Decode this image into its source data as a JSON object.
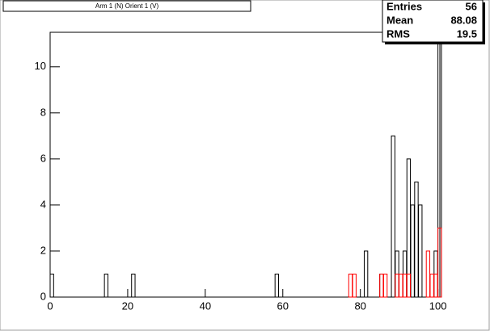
{
  "chart_data": {
    "type": "bar",
    "title": "Arm 1 (N) Orient 1 (V)",
    "stats": [
      {
        "label": "Entries",
        "value": 56
      },
      {
        "label": "Mean",
        "value": 88.08
      },
      {
        "label": "RMS",
        "value": 19.5
      }
    ],
    "xlim": [
      0,
      100.5
    ],
    "xticks": [
      0,
      20,
      40,
      60,
      80,
      100
    ],
    "ylim": [
      0,
      11.5
    ],
    "yticks": [
      0,
      2,
      4,
      6,
      8,
      10
    ],
    "series": [
      {
        "color": "#000000",
        "x": [
          0,
          14,
          21,
          58,
          81,
          85,
          88,
          89,
          91,
          92,
          93,
          94,
          95,
          99,
          100
        ],
        "values": [
          1,
          1,
          1,
          1,
          2,
          1,
          7,
          2,
          2,
          6,
          4,
          5,
          4,
          2,
          11
        ]
      },
      {
        "color": "#ff0000",
        "x": [
          77,
          78,
          85,
          86,
          89,
          90,
          91,
          92,
          97,
          98,
          99,
          100
        ],
        "values": [
          1,
          1,
          1,
          1,
          1,
          1,
          1,
          1,
          2,
          1,
          1,
          3
        ]
      }
    ]
  }
}
